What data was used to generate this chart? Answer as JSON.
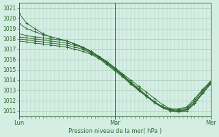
{
  "title": "Pression niveau de la mer( hPa )",
  "bg_color": "#d4eee4",
  "grid_color": "#a8cbb8",
  "line_color": "#2d6b2d",
  "ylim": [
    1010.5,
    1021.5
  ],
  "yticks": [
    1011,
    1012,
    1013,
    1014,
    1015,
    1016,
    1017,
    1018,
    1019,
    1020,
    1021
  ],
  "xtick_labels": [
    "Lun",
    "Mar",
    "Mer"
  ],
  "xlim": [
    0,
    48
  ],
  "xtick_positions": [
    0,
    24,
    48
  ],
  "series": [
    {
      "x": [
        0,
        2,
        4,
        6,
        8,
        10,
        12,
        14,
        16,
        18,
        20,
        22,
        24,
        26,
        28,
        30,
        32,
        34,
        36,
        38,
        40,
        42,
        44,
        46,
        48
      ],
      "y": [
        1020.5,
        1019.5,
        1019.0,
        1018.5,
        1018.2,
        1018.0,
        1017.8,
        1017.5,
        1017.2,
        1016.8,
        1016.3,
        1015.8,
        1015.2,
        1014.6,
        1014.0,
        1013.4,
        1012.8,
        1012.2,
        1011.6,
        1011.2,
        1011.0,
        1011.2,
        1012.0,
        1013.0,
        1013.8
      ]
    },
    {
      "x": [
        0,
        2,
        4,
        6,
        8,
        10,
        12,
        14,
        16,
        18,
        20,
        22,
        24,
        26,
        28,
        30,
        32,
        34,
        36,
        38,
        40,
        42,
        44,
        46,
        48
      ],
      "y": [
        1019.5,
        1019.0,
        1018.7,
        1018.4,
        1018.2,
        1018.0,
        1017.8,
        1017.5,
        1017.2,
        1016.8,
        1016.3,
        1015.8,
        1015.2,
        1014.5,
        1013.8,
        1013.2,
        1012.5,
        1011.9,
        1011.4,
        1011.1,
        1010.9,
        1011.1,
        1011.8,
        1012.8,
        1013.7
      ]
    },
    {
      "x": [
        0,
        2,
        4,
        6,
        8,
        10,
        12,
        14,
        16,
        18,
        20,
        22,
        24,
        26,
        28,
        30,
        32,
        34,
        36,
        38,
        40,
        42,
        44,
        46,
        48
      ],
      "y": [
        1018.5,
        1018.3,
        1018.2,
        1018.1,
        1018.0,
        1017.9,
        1017.8,
        1017.5,
        1017.2,
        1016.8,
        1016.3,
        1015.7,
        1015.1,
        1014.5,
        1013.8,
        1013.1,
        1012.4,
        1011.8,
        1011.3,
        1011.0,
        1010.9,
        1011.0,
        1011.7,
        1012.7,
        1013.6
      ]
    },
    {
      "x": [
        0,
        2,
        4,
        6,
        8,
        10,
        12,
        14,
        16,
        18,
        20,
        22,
        24,
        26,
        28,
        30,
        32,
        34,
        36,
        38,
        40,
        42,
        44,
        46,
        48
      ],
      "y": [
        1018.2,
        1018.1,
        1018.0,
        1017.9,
        1017.8,
        1017.7,
        1017.6,
        1017.4,
        1017.1,
        1016.7,
        1016.2,
        1015.7,
        1015.1,
        1014.4,
        1013.7,
        1013.0,
        1012.4,
        1011.8,
        1011.3,
        1011.0,
        1011.0,
        1011.1,
        1011.8,
        1012.8,
        1013.7
      ]
    },
    {
      "x": [
        0,
        2,
        4,
        6,
        8,
        10,
        12,
        14,
        16,
        18,
        20,
        22,
        24,
        26,
        28,
        30,
        32,
        34,
        36,
        38,
        40,
        42,
        44,
        46,
        48
      ],
      "y": [
        1018.0,
        1017.9,
        1017.8,
        1017.7,
        1017.6,
        1017.5,
        1017.4,
        1017.2,
        1017.0,
        1016.6,
        1016.2,
        1015.6,
        1015.0,
        1014.4,
        1013.7,
        1013.0,
        1012.4,
        1011.8,
        1011.4,
        1011.1,
        1011.1,
        1011.3,
        1012.0,
        1013.0,
        1013.8
      ]
    },
    {
      "x": [
        0,
        2,
        4,
        6,
        8,
        10,
        12,
        14,
        16,
        18,
        20,
        22,
        24,
        26,
        28,
        30,
        32,
        34,
        36,
        38,
        40,
        42,
        44,
        46,
        48
      ],
      "y": [
        1017.8,
        1017.7,
        1017.6,
        1017.5,
        1017.4,
        1017.3,
        1017.2,
        1017.0,
        1016.8,
        1016.5,
        1016.1,
        1015.5,
        1014.9,
        1014.3,
        1013.6,
        1013.0,
        1012.4,
        1011.8,
        1011.4,
        1011.2,
        1011.2,
        1011.4,
        1012.2,
        1013.1,
        1013.9
      ]
    }
  ]
}
